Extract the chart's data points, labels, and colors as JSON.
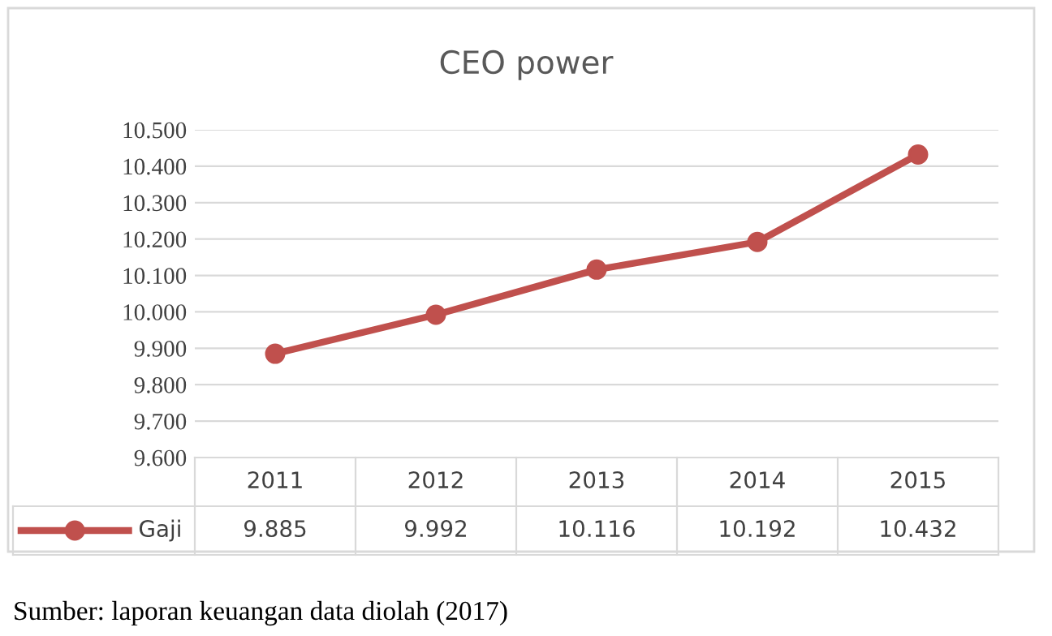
{
  "chart_data": {
    "type": "line",
    "title": "CEO power",
    "categories": [
      "2011",
      "2012",
      "2013",
      "2014",
      "2015"
    ],
    "series": [
      {
        "name": "Gaji",
        "color": "#c0504d",
        "values": [
          9885,
          9992,
          10116,
          10192,
          10432
        ],
        "value_labels": [
          "9.885",
          "9.992",
          "10.116",
          "10.192",
          "10.432"
        ]
      }
    ],
    "ylim": [
      9600,
      10500
    ],
    "yticks": [
      {
        "value": 9600,
        "label": "9.600"
      },
      {
        "value": 9700,
        "label": "9.700"
      },
      {
        "value": 9800,
        "label": "9.800"
      },
      {
        "value": 9900,
        "label": "9.900"
      },
      {
        "value": 10000,
        "label": "10.000"
      },
      {
        "value": 10100,
        "label": "10.100"
      },
      {
        "value": 10200,
        "label": "10.200"
      },
      {
        "value": 10300,
        "label": "10.300"
      },
      {
        "value": 10400,
        "label": "10.400"
      },
      {
        "value": 10500,
        "label": "10.500"
      }
    ],
    "grid": "y",
    "marker": "circle",
    "line_style": "solid",
    "annotations": [
      "Sumber: laporan keuangan data diolah (2017)"
    ]
  }
}
